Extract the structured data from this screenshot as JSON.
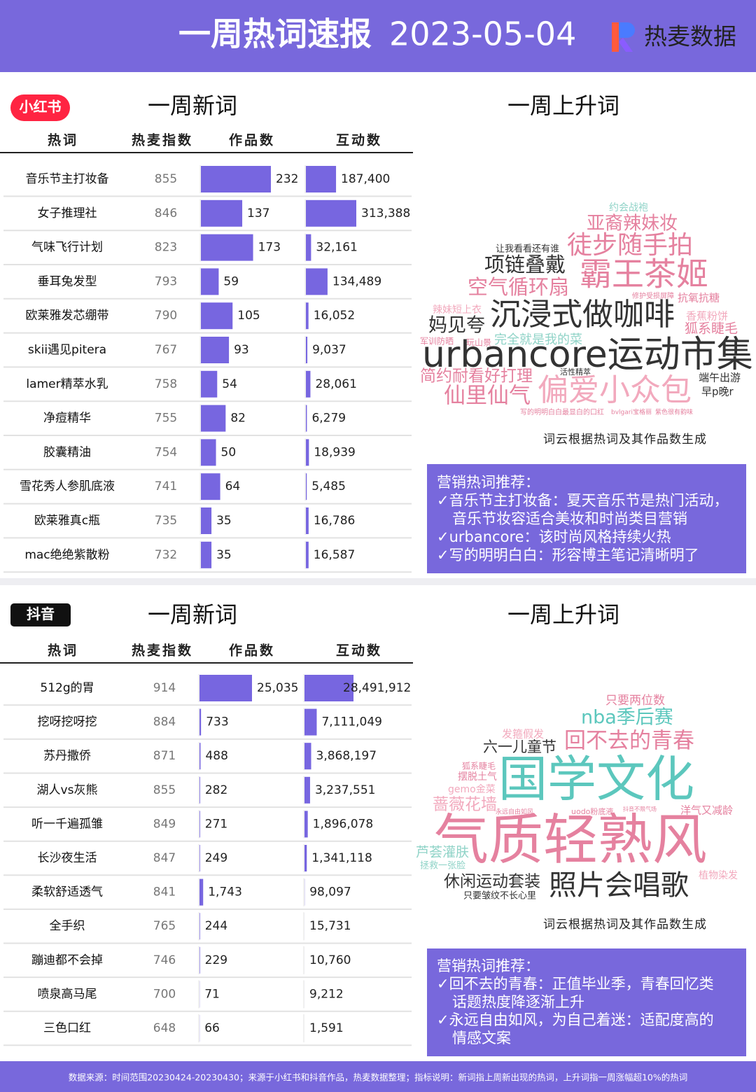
{
  "header": {
    "title": "一周热词速报",
    "date": "2023-05-04",
    "brand": "热麦数据"
  },
  "sections": [
    {
      "platform": "小红书",
      "new_title": "一周新词",
      "rising_title": "一周上升词",
      "columns": [
        "热词",
        "热麦指数",
        "作品数",
        "互动数"
      ],
      "rows": [
        {
          "word": "音乐节主打妆备",
          "index": 855,
          "works": 232,
          "works_label": "232",
          "interactions": 187400,
          "interactions_label": "187,400"
        },
        {
          "word": "女子推理社",
          "index": 846,
          "works": 137,
          "works_label": "137",
          "interactions": 313388,
          "interactions_label": "313,388"
        },
        {
          "word": "气味飞行计划",
          "index": 823,
          "works": 173,
          "works_label": "173",
          "interactions": 32161,
          "interactions_label": "32,161"
        },
        {
          "word": "垂耳兔发型",
          "index": 793,
          "works": 59,
          "works_label": "59",
          "interactions": 134489,
          "interactions_label": "134,489"
        },
        {
          "word": "欧莱雅发芯绷带",
          "index": 790,
          "works": 105,
          "works_label": "105",
          "interactions": 16052,
          "interactions_label": "16,052"
        },
        {
          "word": "skii遇见pitera",
          "index": 767,
          "works": 93,
          "works_label": "93",
          "interactions": 9037,
          "interactions_label": "9,037"
        },
        {
          "word": "lamer精萃水乳",
          "index": 758,
          "works": 54,
          "works_label": "54",
          "interactions": 28061,
          "interactions_label": "28,061"
        },
        {
          "word": "净痘精华",
          "index": 755,
          "works": 82,
          "works_label": "82",
          "interactions": 6279,
          "interactions_label": "6,279"
        },
        {
          "word": "胶囊精油",
          "index": 754,
          "works": 50,
          "works_label": "50",
          "interactions": 18939,
          "interactions_label": "18,939"
        },
        {
          "word": "雪花秀人参肌底液",
          "index": 741,
          "works": 64,
          "works_label": "64",
          "interactions": 5485,
          "interactions_label": "5,485"
        },
        {
          "word": "欧莱雅真c瓶",
          "index": 735,
          "works": 35,
          "works_label": "35",
          "interactions": 16786,
          "interactions_label": "16,786"
        },
        {
          "word": "mac绝绝紫散粉",
          "index": 732,
          "works": 35,
          "works_label": "35",
          "interactions": 16587,
          "interactions_label": "16,587"
        }
      ],
      "cloud": [
        "约会战袍",
        "亚裔辣妹妆",
        "让我看看还有谁",
        "徒步随手拍",
        "项链叠戴",
        "霸王茶姬",
        "空气循环扇",
        "修护受损屏障",
        "抗氧抗糖",
        "辣妹短上衣",
        "沉浸式做咖啡",
        "香蕉粉饼",
        "妈见夸",
        "狐系睫毛",
        "军训防晒",
        "玩山景",
        "完全就是我的菜",
        "urbancore运动市集",
        "简约耐看好打理",
        "活性精萃",
        "端午出游",
        "仙里仙气",
        "偏爱小众包",
        "早p晚r",
        "写的明明白白最显白的口红",
        "bvlgari宝格丽",
        "紫色很有韵味"
      ],
      "cloud_note": "词云根据热词及其作品数生成",
      "recommend_title": "营销热词推荐：",
      "recommend": [
        [
          "✓音乐节主打妆备：夏天音乐节是热门活动，",
          "音乐节妆容适合美妆和时尚类目营销"
        ],
        [
          "✓urbancore：该时尚风格持续火热"
        ],
        [
          "✓写的明明白白：形容博主笔记清晰明了"
        ]
      ]
    },
    {
      "platform": "抖音",
      "new_title": "一周新词",
      "rising_title": "一周上升词",
      "columns": [
        "热词",
        "热麦指数",
        "作品数",
        "互动数"
      ],
      "rows": [
        {
          "word": "512g的胃",
          "index": 914,
          "works": 25035,
          "works_label": "25,035",
          "interactions": 28491912,
          "interactions_label": "28,491,912"
        },
        {
          "word": "挖呀挖呀挖",
          "index": 884,
          "works": 733,
          "works_label": "733",
          "interactions": 7111049,
          "interactions_label": "7,111,049"
        },
        {
          "word": "苏丹撒侨",
          "index": 871,
          "works": 488,
          "works_label": "488",
          "interactions": 3868197,
          "interactions_label": "3,868,197"
        },
        {
          "word": "湖人vs灰熊",
          "index": 855,
          "works": 282,
          "works_label": "282",
          "interactions": 3237551,
          "interactions_label": "3,237,551"
        },
        {
          "word": "听一千遍孤雏",
          "index": 849,
          "works": 271,
          "works_label": "271",
          "interactions": 1896078,
          "interactions_label": "1,896,078"
        },
        {
          "word": "长沙夜生活",
          "index": 847,
          "works": 249,
          "works_label": "249",
          "interactions": 1341118,
          "interactions_label": "1,341,118"
        },
        {
          "word": "柔软舒适透气",
          "index": 841,
          "works": 1743,
          "works_label": "1,743",
          "interactions": 98097,
          "interactions_label": "98,097"
        },
        {
          "word": "全手织",
          "index": 765,
          "works": 244,
          "works_label": "244",
          "interactions": 15731,
          "interactions_label": "15,731"
        },
        {
          "word": "蹦迪都不会掉",
          "index": 746,
          "works": 229,
          "works_label": "229",
          "interactions": 10760,
          "interactions_label": "10,760"
        },
        {
          "word": "喷泉高马尾",
          "index": 700,
          "works": 71,
          "works_label": "71",
          "interactions": 9212,
          "interactions_label": "9,212"
        },
        {
          "word": "三色口红",
          "index": 648,
          "works": 66,
          "works_label": "66",
          "interactions": 1591,
          "interactions_label": "1,591"
        }
      ],
      "cloud": [
        "只要两位数",
        "nba季后赛",
        "发箍假发",
        "六一儿童节",
        "回不去的青春",
        "狐系睫毛",
        "摆脱土气",
        "gemo金菜",
        "国学文化",
        "蔷薇花墙",
        "永远自由如风",
        "uodo粉底液",
        "抖音不限气场",
        "洋气又减龄",
        "气质轻熟风",
        "芦荟灌肤",
        "拯救一张脸",
        "植物染发",
        "休闲运动套装",
        "照片会唱歌",
        "只要皱纹不长心里"
      ],
      "cloud_note": "词云根据热词及其作品数生成",
      "recommend_title": "营销热词推荐：",
      "recommend": [
        [
          "✓回不去的青春：正值毕业季，青春回忆类",
          "话题热度降逐渐上升"
        ],
        [
          "✓永远自由如风，为自己着迷：适配度高的",
          "情感文案"
        ]
      ]
    }
  ],
  "footer": "数据来源：时间范围20230424-20230430；来源于小红书和抖音作品，热麦数据整理；指标说明：新词指上周新出现的热词，上升词指一周涨幅超10%的热词"
}
